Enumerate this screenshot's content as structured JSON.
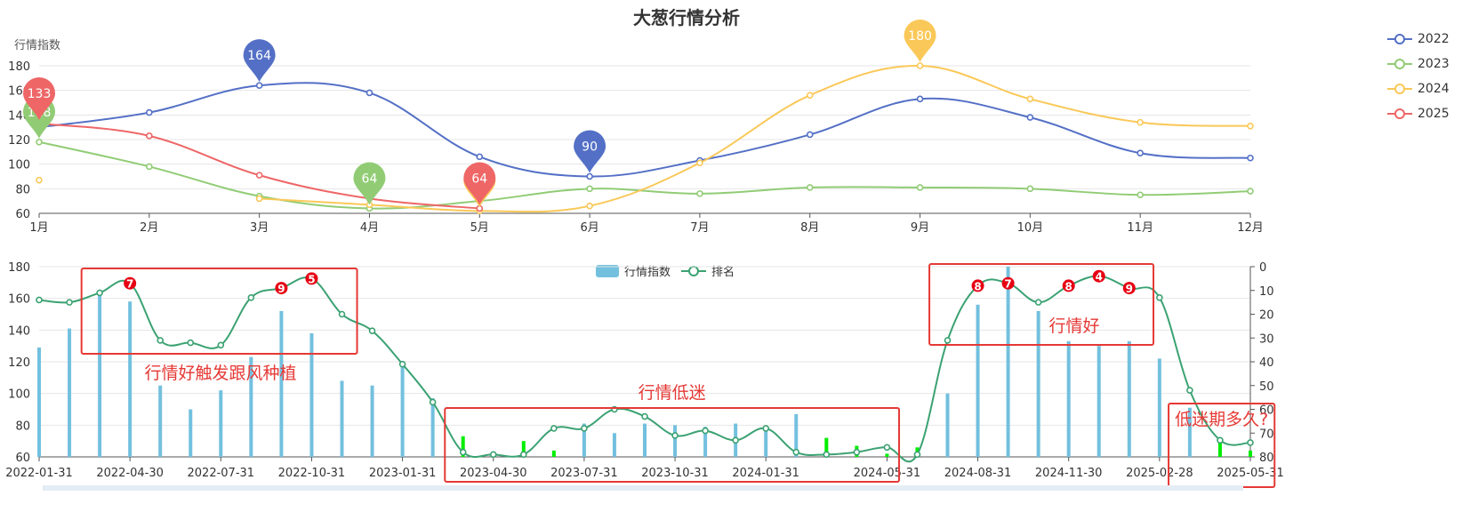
{
  "title": "大葱行情分析",
  "colors": {
    "c2022": "#5470c6",
    "c2023": "#91cc75",
    "c2024": "#fac858",
    "c2025": "#ee6666",
    "bar": "#73c0de",
    "bar_low": "#00ee00",
    "rank_line": "#3ba272",
    "annotation": "#e53935",
    "rank_badge": "#e60012"
  },
  "legend_top": [
    "2022",
    "2023",
    "2024",
    "2025"
  ],
  "legend_bottom": [
    "行情指数",
    "排名"
  ],
  "chart_data": [
    {
      "type": "line",
      "title": "大葱行情分析",
      "ylabel": "行情指数",
      "categories": [
        "1月",
        "2月",
        "3月",
        "4月",
        "5月",
        "6月",
        "7月",
        "8月",
        "9月",
        "10月",
        "11月",
        "12月"
      ],
      "ylim": [
        60,
        180
      ],
      "yticks": [
        60,
        80,
        100,
        120,
        140,
        160,
        180
      ],
      "legend_position": "right",
      "series": [
        {
          "name": "2022",
          "values": [
            130,
            142,
            164,
            158,
            106,
            90,
            103,
            124,
            153,
            138,
            109,
            105
          ],
          "max": {
            "index": 2,
            "label": "164"
          },
          "min": {
            "index": 5,
            "label": "90"
          }
        },
        {
          "name": "2023",
          "values": [
            118,
            98,
            74,
            64,
            70,
            80,
            76,
            81,
            81,
            80,
            75,
            78
          ],
          "max": {
            "index": 0,
            "label": "118"
          },
          "min": {
            "index": 3,
            "label": "64"
          }
        },
        {
          "name": "2024",
          "values": [
            87,
            null,
            72,
            67,
            62,
            66,
            101,
            156,
            180,
            153,
            134,
            131
          ],
          "max": {
            "index": 8,
            "label": "180"
          },
          "min": {
            "index": 4,
            "label": "62"
          }
        },
        {
          "name": "2025",
          "values": [
            133,
            123,
            91,
            72,
            64,
            null,
            null,
            null,
            null,
            null,
            null,
            null
          ],
          "max": {
            "index": 0,
            "label": "133"
          },
          "min": {
            "index": 4,
            "label": "64"
          }
        }
      ]
    },
    {
      "type": "bar",
      "categories": [
        "2022-01-31",
        "2022-02-28",
        "2022-03-31",
        "2022-04-30",
        "2022-05-31",
        "2022-06-30",
        "2022-07-31",
        "2022-08-31",
        "2022-09-30",
        "2022-10-31",
        "2022-11-30",
        "2022-12-31",
        "2023-01-31",
        "2023-02-28",
        "2023-03-31",
        "2023-04-30",
        "2023-05-31",
        "2023-06-30",
        "2023-07-31",
        "2023-08-31",
        "2023-09-30",
        "2023-10-31",
        "2023-11-30",
        "2023-12-31",
        "2024-01-31",
        "2024-02-29",
        "2024-03-31",
        "2024-04-30",
        "2024-05-31",
        "2024-06-30",
        "2024-07-31",
        "2024-08-31",
        "2024-09-30",
        "2024-10-31",
        "2024-11-30",
        "2024-12-31",
        "2025-01-31",
        "2025-02-28",
        "2025-03-31",
        "2025-04-30",
        "2025-05-31"
      ],
      "shown_x_labels": [
        "2022-01-31",
        "2022-04-30",
        "2022-07-31",
        "2022-10-31",
        "2023-01-31",
        "2023-04-30",
        "2023-07-31",
        "2023-10-31",
        "2024-01-31",
        "2024-05-31",
        "2024-08-31",
        "2024-11-30",
        "2025-02-28",
        "2025-05-31"
      ],
      "ylim": [
        60,
        180
      ],
      "yticks": [
        60,
        80,
        100,
        120,
        140,
        160,
        180
      ],
      "y2lim": [
        0,
        80
      ],
      "y2ticks": [
        0,
        10,
        20,
        30,
        40,
        50,
        60,
        70,
        80
      ],
      "y2_inverse": true,
      "series": [
        {
          "name": "行情指数",
          "axis": "left",
          "values": [
            129,
            141,
            163,
            158,
            105,
            90,
            102,
            123,
            152,
            138,
            108,
            105,
            120,
            97,
            73,
            62,
            70,
            64,
            81,
            75,
            81,
            80,
            79,
            81,
            78,
            87,
            72,
            67,
            62,
            66,
            100,
            156,
            180,
            152,
            133,
            130,
            133,
            122,
            91,
            72,
            64
          ]
        },
        {
          "name": "排名",
          "axis": "right",
          "values": [
            14,
            15,
            11,
            7,
            31,
            32,
            33,
            13,
            9,
            5,
            20,
            27,
            41,
            57,
            78,
            79,
            79,
            68,
            68,
            60,
            63,
            71,
            69,
            73,
            68,
            78,
            79,
            78,
            76,
            79,
            31,
            8,
            7,
            15,
            8,
            4,
            9,
            13,
            52,
            73,
            74
          ]
        }
      ],
      "rank_badges": [
        {
          "index": 3,
          "label": "7"
        },
        {
          "index": 8,
          "label": "9"
        },
        {
          "index": 9,
          "label": "5"
        },
        {
          "index": 31,
          "label": "8"
        },
        {
          "index": 32,
          "label": "7"
        },
        {
          "index": 34,
          "label": "8"
        },
        {
          "index": 35,
          "label": "4"
        },
        {
          "index": 36,
          "label": "9"
        }
      ],
      "annotations": [
        {
          "text": "行情好触发跟风种植",
          "from": 1.4,
          "to": 10.5
        },
        {
          "text": "行情低迷",
          "from": 13.4,
          "to": 28.4
        },
        {
          "text": "行情好",
          "from": 29.4,
          "to": 36.8
        },
        {
          "text": "低迷期多久?",
          "from": 37.3,
          "to": 40.8
        }
      ]
    }
  ]
}
